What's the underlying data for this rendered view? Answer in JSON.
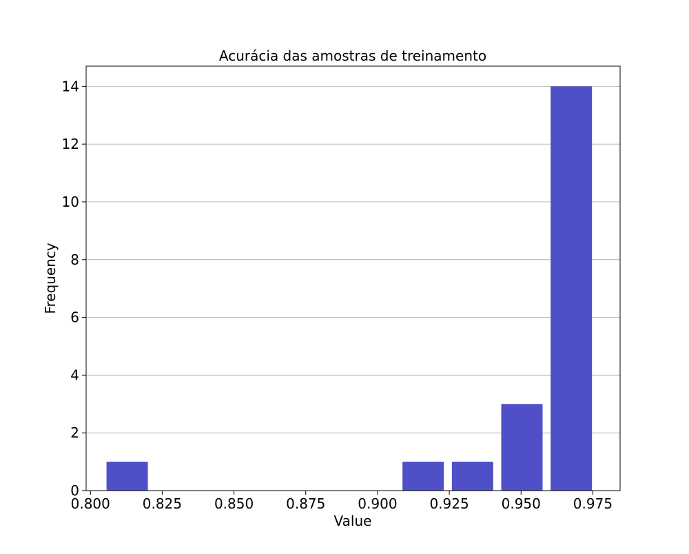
{
  "chart_data": {
    "type": "bar",
    "title": "Acurácia das amostras de treinamento",
    "xlabel": "Value",
    "ylabel": "Frequency",
    "xlim": [
      0.7985,
      0.9845
    ],
    "ylim": [
      0,
      14.7
    ],
    "x_ticks": [
      0.8,
      0.825,
      0.85,
      0.875,
      0.9,
      0.925,
      0.95,
      0.975
    ],
    "x_tick_labels": [
      "0.800",
      "0.825",
      "0.850",
      "0.875",
      "0.900",
      "0.925",
      "0.950",
      "0.975"
    ],
    "y_ticks": [
      0,
      2,
      4,
      6,
      8,
      10,
      12,
      14
    ],
    "y_tick_labels": [
      "0",
      "2",
      "4",
      "6",
      "8",
      "10",
      "12",
      "14"
    ],
    "grid": "y",
    "bar_color": "#4f4fc8",
    "bins": [
      {
        "start": 0.8056,
        "end": 0.82,
        "value": 1
      },
      {
        "start": 0.9087,
        "end": 0.9231,
        "value": 1
      },
      {
        "start": 0.9259,
        "end": 0.9403,
        "value": 1
      },
      {
        "start": 0.9431,
        "end": 0.9575,
        "value": 3
      },
      {
        "start": 0.9603,
        "end": 0.9747,
        "value": 14
      }
    ]
  }
}
